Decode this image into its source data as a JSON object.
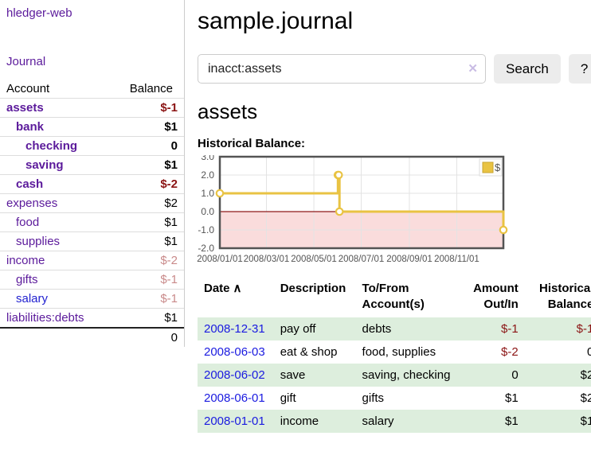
{
  "colors": {
    "accent_purple": "#5b1a9b",
    "link_blue": "#1a1ae0",
    "negative_strong": "#8b1414",
    "negative_soft": "#c98a8a",
    "row_green": "#ddeedd"
  },
  "sidebar": {
    "brand": "hledger-web",
    "journal_link": "Journal",
    "headers": {
      "account": "Account",
      "balance": "Balance"
    },
    "accounts": [
      {
        "name": "assets",
        "balance": "$-1"
      },
      {
        "name": "bank",
        "balance": "$1"
      },
      {
        "name": "checking",
        "balance": "0"
      },
      {
        "name": "saving",
        "balance": "$1"
      },
      {
        "name": "cash",
        "balance": "$-2"
      },
      {
        "name": "expenses",
        "balance": "$2"
      },
      {
        "name": "food",
        "balance": "$1"
      },
      {
        "name": "supplies",
        "balance": "$1"
      },
      {
        "name": "income",
        "balance": "$-2"
      },
      {
        "name": "gifts",
        "balance": "$-1"
      },
      {
        "name": "salary",
        "balance": "$-1"
      },
      {
        "name": "liabilities:debts",
        "balance": "$1"
      }
    ],
    "total": "0"
  },
  "header": {
    "title": "sample.journal"
  },
  "search": {
    "value": "inacct:assets",
    "clear_icon": "✕",
    "button": "Search",
    "help_button": "?"
  },
  "account_page": {
    "heading": "assets",
    "chart_label": "Historical Balance:"
  },
  "chart_data": {
    "type": "line",
    "step": true,
    "title": "Historical Balance:",
    "ylim": [
      -2,
      3
    ],
    "x_range": [
      "2008-01-01",
      "2008-12-31"
    ],
    "y_ticks": [
      {
        "v": 3,
        "label": "3.0"
      },
      {
        "v": 2,
        "label": "2.0"
      },
      {
        "v": 1,
        "label": "1.0"
      },
      {
        "v": 0,
        "label": "0.0"
      },
      {
        "v": -1,
        "label": "-1.0"
      },
      {
        "v": -2,
        "label": "-2.0"
      }
    ],
    "x_ticks": [
      {
        "date": "2008-01-01",
        "label": "2008/01/01"
      },
      {
        "date": "2008-03-01",
        "label": "2008/03/01"
      },
      {
        "date": "2008-05-01",
        "label": "2008/05/01"
      },
      {
        "date": "2008-07-01",
        "label": "2008/07/01"
      },
      {
        "date": "2008-09-01",
        "label": "2008/09/01"
      },
      {
        "date": "2008-11-01",
        "label": "2008/11/01"
      }
    ],
    "series": [
      {
        "name": "$",
        "color": "#e9c343",
        "points": [
          [
            "2008-01-01",
            1
          ],
          [
            "2008-06-01",
            2
          ],
          [
            "2008-06-02",
            2
          ],
          [
            "2008-06-03",
            0
          ],
          [
            "2008-12-31",
            -1
          ]
        ]
      }
    ],
    "negative_region_fill": "#fadcdc",
    "zero_line_color": "#8f1a1a",
    "legend_position": "top-right"
  },
  "register_table": {
    "headers": {
      "date": "Date",
      "sort_indicator": "∧",
      "description": "Description",
      "account": "To/From Account(s)",
      "amount": "Amount Out/In",
      "balance": "Historical Balance"
    },
    "rows": [
      {
        "date": "2008-12-31",
        "description": "pay off",
        "account": "debts",
        "amount": "$-1",
        "balance": "$-1"
      },
      {
        "date": "2008-06-03",
        "description": "eat & shop",
        "account": "food, supplies",
        "amount": "$-2",
        "balance": "0"
      },
      {
        "date": "2008-06-02",
        "description": "save",
        "account": "saving, checking",
        "amount": "0",
        "balance": "$2"
      },
      {
        "date": "2008-06-01",
        "description": "gift",
        "account": "gifts",
        "amount": "$1",
        "balance": "$2"
      },
      {
        "date": "2008-01-01",
        "description": "income",
        "account": "salary",
        "amount": "$1",
        "balance": "$1"
      }
    ]
  }
}
